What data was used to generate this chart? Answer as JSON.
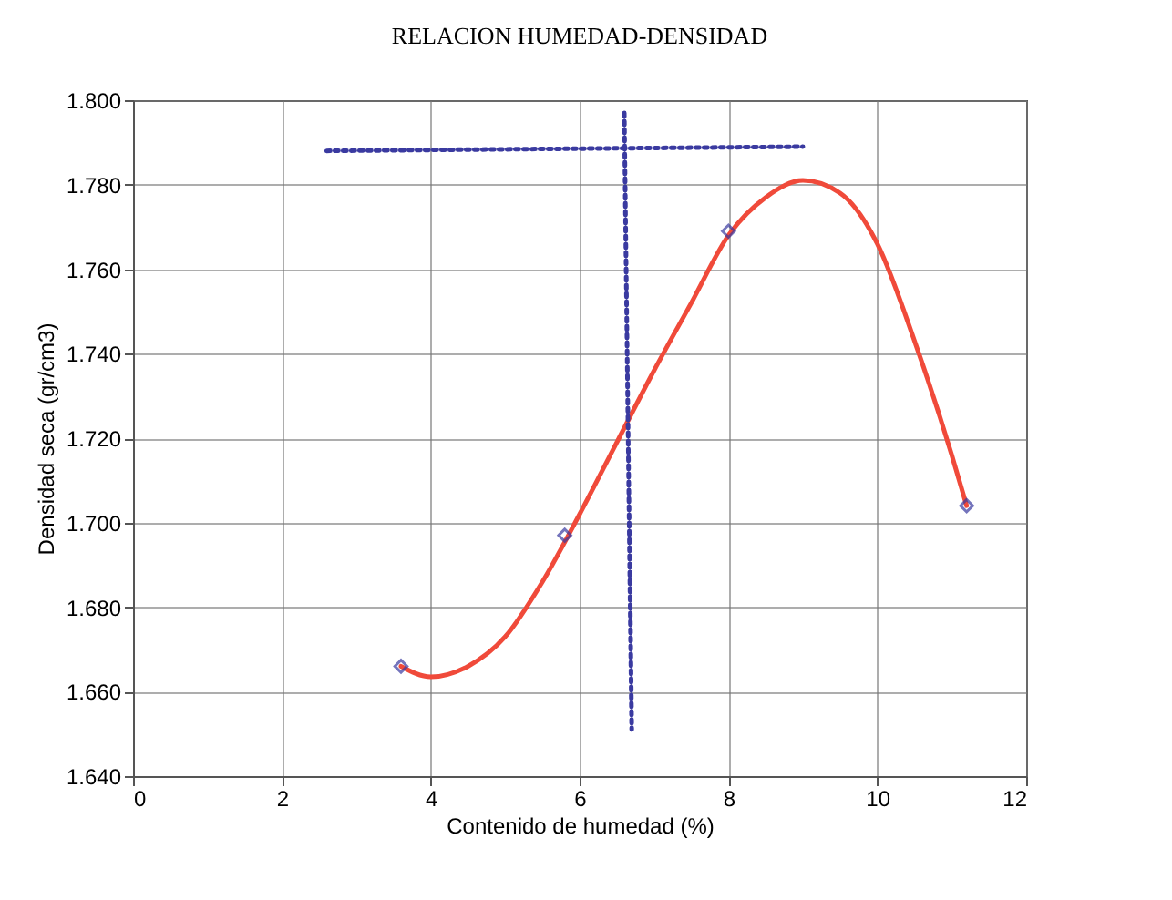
{
  "chart_data": {
    "type": "scatter",
    "title": "RELACION HUMEDAD-DENSIDAD",
    "xlabel": "Contenido de humedad (%)",
    "ylabel": "Densidad seca (gr/cm3)",
    "xlim": [
      0,
      12
    ],
    "xticks": [
      0,
      2,
      4,
      6,
      8,
      10,
      12
    ],
    "ylim": [
      1.64,
      1.8
    ],
    "yticks": [
      {
        "value": 1.64,
        "label": "1.640"
      },
      {
        "value": 1.66,
        "label": "1.660"
      },
      {
        "value": 1.68,
        "label": "1.680"
      },
      {
        "value": 1.7,
        "label": "1.700"
      },
      {
        "value": 1.72,
        "label": "1.720"
      },
      {
        "value": 1.74,
        "label": "1.740"
      },
      {
        "value": 1.76,
        "label": "1.760"
      },
      {
        "value": 1.78,
        "label": "1.780"
      },
      {
        "value": 1.8,
        "label": "1.800"
      }
    ],
    "grid": true,
    "series": [
      {
        "type": "line",
        "color": "#f04a3a",
        "marker": "none",
        "line_style": "solid",
        "x": [
          3.6,
          4.0,
          4.5,
          5.0,
          5.5,
          6.0,
          6.5,
          7.0,
          7.5,
          8.0,
          8.5,
          9.0,
          9.5,
          10.0,
          10.5,
          11.0,
          11.2
        ],
        "values": [
          1.666,
          1.6635,
          1.666,
          1.673,
          1.686,
          1.702,
          1.719,
          1.736,
          1.752,
          1.768,
          1.777,
          1.781,
          1.778,
          1.766,
          1.743,
          1.716,
          1.704
        ]
      },
      {
        "color": "#3a3aa0",
        "marker": "diamond",
        "x": [
          3.6,
          5.8,
          8.0,
          11.2
        ],
        "values": [
          1.666,
          1.697,
          1.769,
          1.704
        ]
      },
      {
        "type": "line",
        "color": "#3a3aa0",
        "marker": "none",
        "line_style": "dotted",
        "x": [
          2.6,
          9.0
        ],
        "values": [
          1.788,
          1.789
        ]
      },
      {
        "type": "line",
        "color": "#3a3aa0",
        "marker": "none",
        "line_style": "dotted",
        "x": [
          6.6,
          6.7
        ],
        "values": [
          1.797,
          1.651
        ]
      }
    ]
  }
}
